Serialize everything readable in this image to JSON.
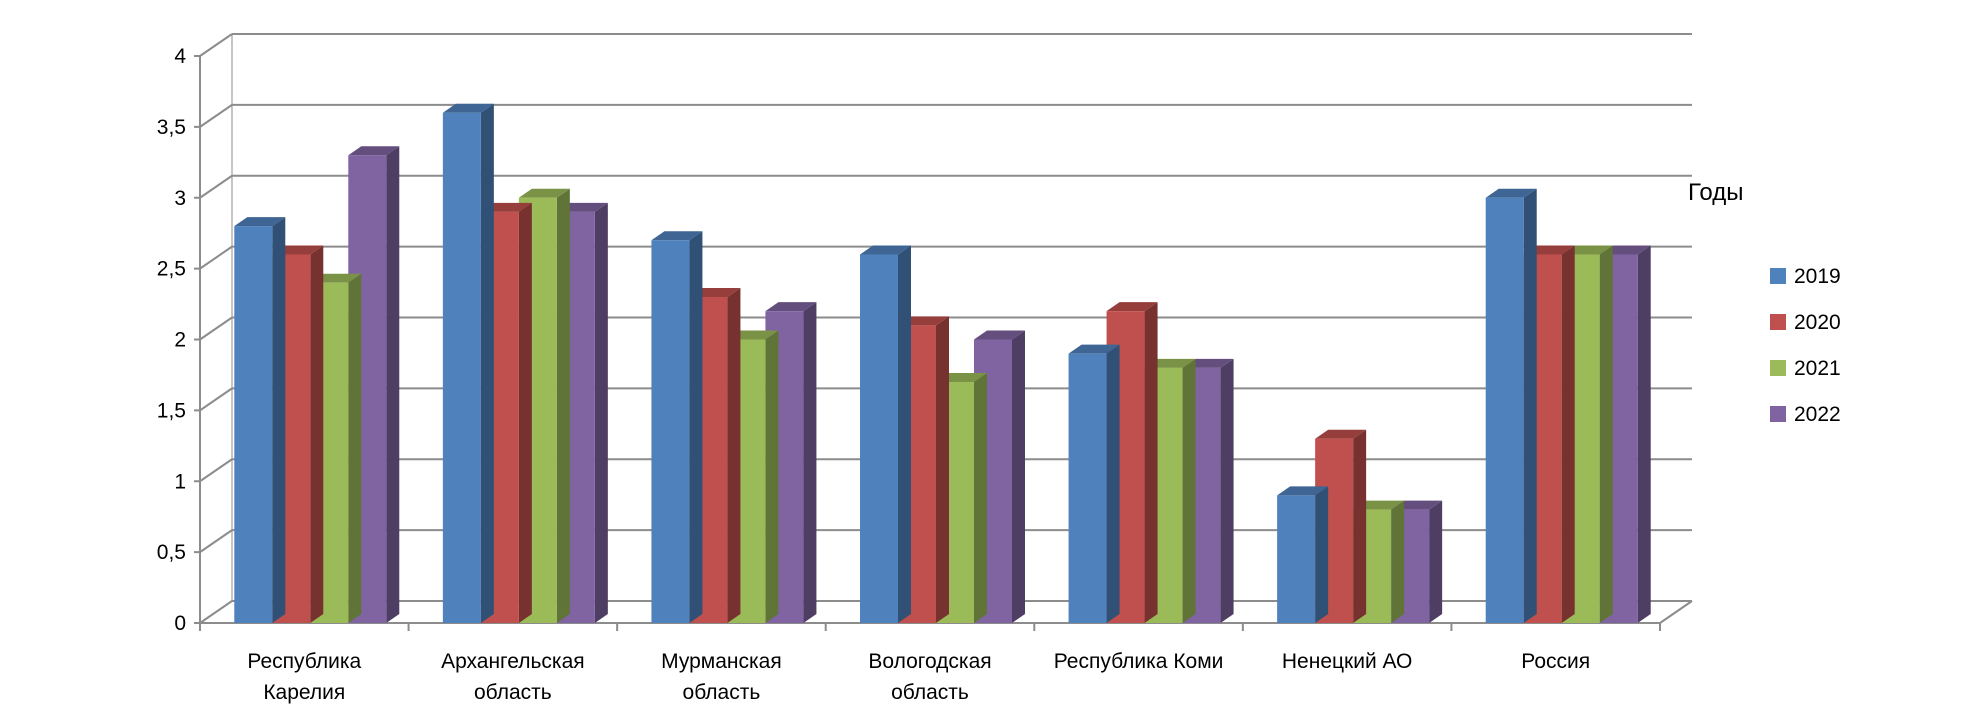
{
  "chart_data": {
    "type": "bar",
    "categories": [
      [
        "Республика",
        "Карелия"
      ],
      [
        "Архангельская",
        "область"
      ],
      [
        "Мурманская",
        "область"
      ],
      [
        "Вологодская",
        "область"
      ],
      [
        "Республика Коми"
      ],
      [
        "Ненецкий АО"
      ],
      [
        "Россия"
      ]
    ],
    "series": [
      {
        "name": "2019",
        "color": "#4F81BD",
        "values": [
          2.8,
          3.6,
          2.7,
          2.6,
          1.9,
          0.9,
          3.0
        ]
      },
      {
        "name": "2020",
        "color": "#C0504D",
        "values": [
          2.6,
          2.9,
          2.3,
          2.1,
          2.2,
          1.3,
          2.6
        ]
      },
      {
        "name": "2021",
        "color": "#9BBB59",
        "values": [
          2.4,
          3.0,
          2.0,
          1.7,
          1.8,
          0.8,
          2.6
        ]
      },
      {
        "name": "2022",
        "color": "#8064A2",
        "values": [
          3.3,
          2.9,
          2.2,
          2.0,
          1.8,
          0.8,
          2.6
        ]
      }
    ],
    "ylim": [
      0,
      4
    ],
    "yticks": [
      "0",
      "0,5",
      "1",
      "1,5",
      "2",
      "2,5",
      "3",
      "3,5",
      "4"
    ],
    "annotation": "Годы",
    "legend_position": "right",
    "grid": true,
    "style": "3d-clustered-column"
  }
}
